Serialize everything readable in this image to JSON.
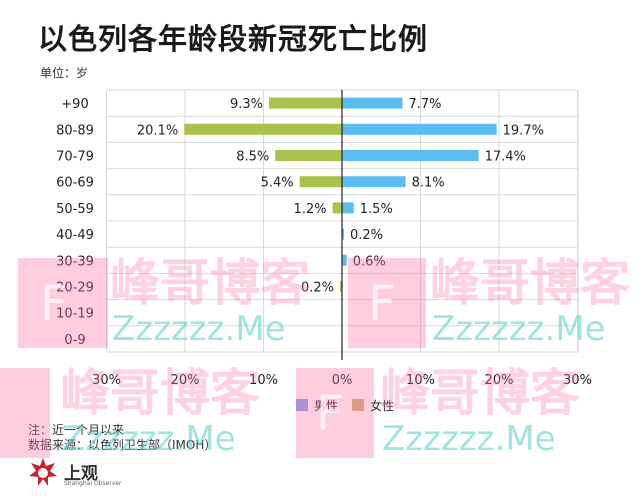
{
  "title": "以色列各年龄段新冠死亡比例",
  "unit_label": "单位：岁",
  "chart_data": {
    "type": "bar",
    "orientation": "horizontal-diverging",
    "categories": [
      "+90",
      "80-89",
      "70-79",
      "60-69",
      "50-59",
      "40-49",
      "30-39",
      "20-29",
      "10-19",
      "0-9"
    ],
    "series": [
      {
        "name": "男性",
        "color": "#5bbcf2",
        "values": [
          7.7,
          19.7,
          17.4,
          8.1,
          1.5,
          0.2,
          0.6,
          null,
          null,
          null
        ]
      },
      {
        "name": "女性",
        "color": "#a9c24c",
        "values": [
          9.3,
          20.1,
          8.5,
          5.4,
          1.2,
          null,
          null,
          0.2,
          null,
          null
        ]
      }
    ],
    "value_labels": {
      "male": [
        "7.7%",
        "19.7%",
        "17.4%",
        "8.1%",
        "1.5%",
        "0.2%",
        "0.6%",
        "",
        "",
        ""
      ],
      "female": [
        "9.3%",
        "20.1%",
        "8.5%",
        "5.4%",
        "1.2%",
        "",
        "",
        "0.2%",
        "",
        ""
      ]
    },
    "x_ticks": [
      "30%",
      "20%",
      "10%",
      "0%",
      "10%",
      "20%",
      "30%"
    ],
    "xlim": [
      -30,
      30
    ],
    "grid": true,
    "legend_position": "bottom-right",
    "legend": [
      {
        "label": "男性",
        "color": "#7aa5e8"
      },
      {
        "label": "女性",
        "color": "#c9b36a"
      }
    ]
  },
  "notes": {
    "line1": "注：近一个月以来",
    "line2": "数据来源：以色列卫生部（IMOH）"
  },
  "logo": {
    "name": "上观",
    "subtitle": "Shanghai Observer"
  },
  "watermark": {
    "text": "峰哥博客",
    "sub": "Zzzzzz.Me",
    "letter": "F"
  }
}
